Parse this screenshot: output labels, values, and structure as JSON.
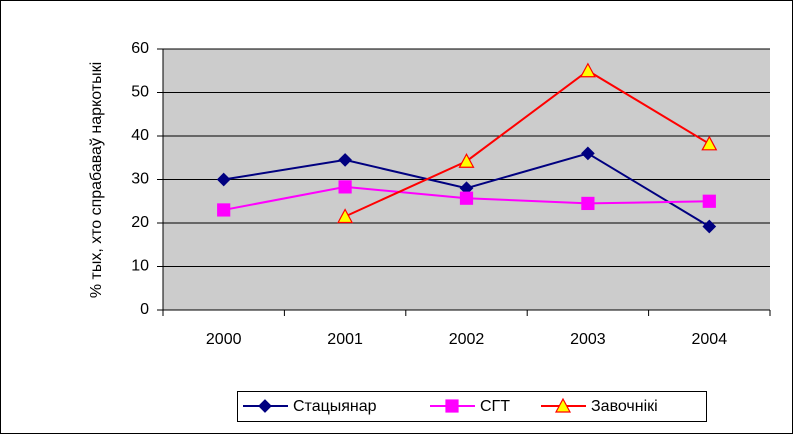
{
  "chart_data": {
    "type": "line",
    "y_label": "% тых, хто спрабаваў наркотыкі",
    "categories": [
      "2000",
      "2001",
      "2002",
      "2003",
      "2004"
    ],
    "series": [
      {
        "name": "Стацыянар",
        "color": "#000080",
        "marker": "diamond",
        "marker_fill": "#000080",
        "values": [
          30,
          34.5,
          28,
          36,
          19.2
        ]
      },
      {
        "name": "СГТ",
        "color": "#ff00ff",
        "marker": "square",
        "marker_fill": "#ff00ff",
        "values": [
          23,
          28.3,
          25.7,
          24.5,
          25
        ]
      },
      {
        "name": "Завочнікі",
        "color": "#ff0000",
        "marker": "triangle",
        "marker_fill": "#ffff00",
        "values": [
          null,
          21.5,
          34.2,
          55,
          38.2
        ]
      }
    ],
    "ylim": [
      0,
      60
    ],
    "yticks": [
      0,
      10,
      20,
      30,
      40,
      50,
      60
    ],
    "grid": true,
    "legend": "bottom"
  }
}
